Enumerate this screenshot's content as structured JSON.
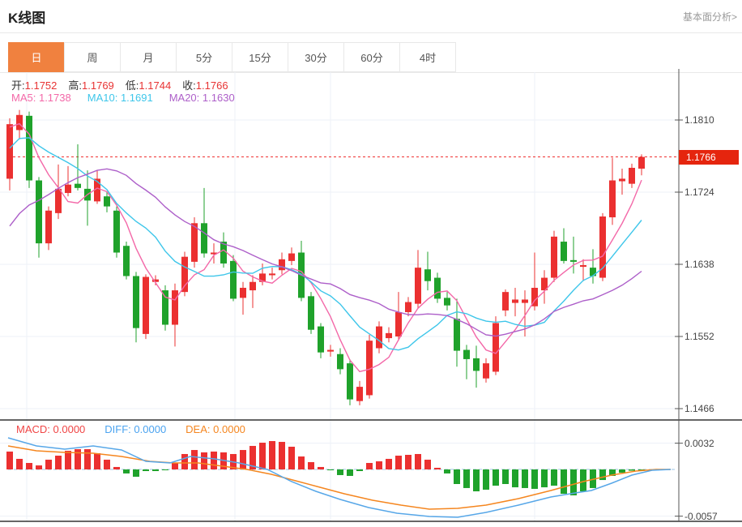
{
  "header": {
    "title": "K线图",
    "link": "基本面分析>"
  },
  "tabs": {
    "items": [
      "日",
      "周",
      "月",
      "5分",
      "15分",
      "30分",
      "60分",
      "4时"
    ],
    "active_index": 0
  },
  "legend": {
    "open_label": "开:",
    "open": "1.1752",
    "high_label": "高:",
    "high": "1.1769",
    "low_label": "低:",
    "low": "1.1744",
    "close_label": "收:",
    "close": "1.1766",
    "ma5_label": "MA5:",
    "ma5": "1.1738",
    "ma10_label": "MA10:",
    "ma10": "1.1691",
    "ma20_label": "MA20:",
    "ma20": "1.1630"
  },
  "macd_legend": {
    "macd_label": "MACD:",
    "macd": "0.0000",
    "diff_label": "DIFF:",
    "diff": "0.0000",
    "dea_label": "DEA:",
    "dea": "0.0000"
  },
  "colors": {
    "up": "#eb3030",
    "down": "#1fa22b",
    "ma5": "#f368a8",
    "ma10": "#3ec6ea",
    "ma20": "#ad5fc9",
    "diff": "#57a7e8",
    "dea": "#f5861f",
    "price_line": "#f03232",
    "price_label_bg": "#e5250e",
    "accent_tab": "#f0813f",
    "grid": "#edf1f7",
    "frame": "#333333",
    "axis_text": "#444444",
    "zero_dash": "#9cc4e4",
    "legend_macd": "#f04545",
    "legend_diff": "#4aa3f0",
    "legend_dea": "#f5861f"
  },
  "chart_data": {
    "type": "candlestick",
    "title": "K线图",
    "legend_position": "top-left",
    "grid": true,
    "price_axis": {
      "ticks": [
        1.181,
        1.1724,
        1.1638,
        1.1552,
        1.1466
      ],
      "current_price": 1.1766
    },
    "candles": [
      [
        1.174,
        1.1812,
        1.1726,
        1.1805
      ],
      [
        1.1798,
        1.1822,
        1.1787,
        1.1816
      ],
      [
        1.1815,
        1.182,
        1.1729,
        1.1738
      ],
      [
        1.1738,
        1.1742,
        1.1646,
        1.1663
      ],
      [
        1.1663,
        1.1707,
        1.1655,
        1.1702
      ],
      [
        1.1699,
        1.1757,
        1.1692,
        1.1728
      ],
      [
        1.1723,
        1.1755,
        1.1719,
        1.1733
      ],
      [
        1.1734,
        1.1781,
        1.1726,
        1.1729
      ],
      [
        1.1728,
        1.175,
        1.1684,
        1.1714
      ],
      [
        1.1713,
        1.175,
        1.171,
        1.174
      ],
      [
        1.1719,
        1.1725,
        1.17,
        1.1707
      ],
      [
        1.1702,
        1.1707,
        1.1646,
        1.1652
      ],
      [
        1.166,
        1.1665,
        1.162,
        1.1624
      ],
      [
        1.1624,
        1.1629,
        1.1545,
        1.1562
      ],
      [
        1.1555,
        1.1626,
        1.1549,
        1.1623
      ],
      [
        1.1617,
        1.1625,
        1.1613,
        1.162
      ],
      [
        1.1607,
        1.1613,
        1.1559,
        1.1566
      ],
      [
        1.1566,
        1.1615,
        1.154,
        1.1607
      ],
      [
        1.1605,
        1.1653,
        1.16,
        1.1647
      ],
      [
        1.1641,
        1.1694,
        1.1634,
        1.1687
      ],
      [
        1.1687,
        1.1729,
        1.1646,
        1.1651
      ],
      [
        1.165,
        1.1663,
        1.1639,
        1.1652
      ],
      [
        1.1665,
        1.1676,
        1.1634,
        1.1639
      ],
      [
        1.1642,
        1.1649,
        1.1594,
        1.1597
      ],
      [
        1.1598,
        1.1617,
        1.1578,
        1.161
      ],
      [
        1.1607,
        1.1625,
        1.1586,
        1.1617
      ],
      [
        1.1617,
        1.1639,
        1.1613,
        1.1627
      ],
      [
        1.1625,
        1.1634,
        1.162,
        1.1627
      ],
      [
        1.1631,
        1.1652,
        1.1626,
        1.1644
      ],
      [
        1.1642,
        1.1658,
        1.1637,
        1.1651
      ],
      [
        1.1652,
        1.1666,
        1.1594,
        1.1598
      ],
      [
        1.16,
        1.1605,
        1.1555,
        1.156
      ],
      [
        1.1564,
        1.1568,
        1.1526,
        1.1533
      ],
      [
        1.1534,
        1.1542,
        1.1528,
        1.1536
      ],
      [
        1.1531,
        1.1538,
        1.1507,
        1.1513
      ],
      [
        1.152,
        1.1525,
        1.147,
        1.1477
      ],
      [
        1.1475,
        1.1499,
        1.147,
        1.1492
      ],
      [
        1.1482,
        1.1554,
        1.1478,
        1.1547
      ],
      [
        1.1538,
        1.157,
        1.1532,
        1.1564
      ],
      [
        1.155,
        1.1563,
        1.1545,
        1.1556
      ],
      [
        1.1552,
        1.1605,
        1.1547,
        1.1581
      ],
      [
        1.1581,
        1.1599,
        1.1576,
        1.1593
      ],
      [
        1.1591,
        1.1655,
        1.1586,
        1.1634
      ],
      [
        1.1632,
        1.1653,
        1.1607,
        1.1618
      ],
      [
        1.1622,
        1.1628,
        1.1592,
        1.1597
      ],
      [
        1.1598,
        1.1605,
        1.1583,
        1.1589
      ],
      [
        1.1573,
        1.1597,
        1.1516,
        1.1535
      ],
      [
        1.1536,
        1.1542,
        1.1501,
        1.1525
      ],
      [
        1.1526,
        1.1541,
        1.1491,
        1.1511
      ],
      [
        1.1502,
        1.1526,
        1.1497,
        1.152
      ],
      [
        1.151,
        1.1576,
        1.1506,
        1.1568
      ],
      [
        1.1583,
        1.1608,
        1.1576,
        1.1605
      ],
      [
        1.1592,
        1.161,
        1.1576,
        1.1596
      ],
      [
        1.1592,
        1.1607,
        1.1552,
        1.1596
      ],
      [
        1.1588,
        1.1652,
        1.1583,
        1.161
      ],
      [
        1.1607,
        1.1631,
        1.1591,
        1.1622
      ],
      [
        1.1622,
        1.1678,
        1.1617,
        1.1671
      ],
      [
        1.1665,
        1.1681,
        1.1639,
        1.1642
      ],
      [
        1.1643,
        1.1671,
        1.1627,
        1.1641
      ],
      [
        1.1635,
        1.1644,
        1.1618,
        1.1637
      ],
      [
        1.1634,
        1.1656,
        1.1615,
        1.1624
      ],
      [
        1.1622,
        1.1699,
        1.1618,
        1.1695
      ],
      [
        1.1694,
        1.1765,
        1.1685,
        1.1738
      ],
      [
        1.1737,
        1.1752,
        1.1721,
        1.174
      ],
      [
        1.1734,
        1.1758,
        1.1729,
        1.1753
      ],
      [
        1.1752,
        1.1769,
        1.1744,
        1.1766
      ]
    ],
    "lead_in_closes": [
      1.152,
      1.1535,
      1.155,
      1.1565,
      1.158,
      1.1595,
      1.1612,
      1.163,
      1.165,
      1.1672,
      1.17,
      1.173,
      1.1758,
      1.1778,
      1.179,
      1.1796,
      1.18,
      1.1803,
      1.1804
    ],
    "ma_periods": [
      5,
      10,
      20
    ],
    "indicator": {
      "type": "MACD",
      "axis_ticks": [
        0.0032,
        -0.0057
      ],
      "hist": [
        0.00218,
        0.00129,
        0.00079,
        0.00049,
        0.00119,
        0.00168,
        0.00227,
        0.00247,
        0.00247,
        0.00198,
        0.00119,
        0.0003,
        -0.00049,
        -0.00089,
        -0.0002,
        -0.0002,
        -0.0001,
        0.00079,
        0.00188,
        0.00237,
        0.00208,
        0.00218,
        0.00208,
        0.00188,
        0.00237,
        0.00287,
        0.00326,
        0.00346,
        0.00336,
        0.00277,
        0.00158,
        0.00089,
        0.0003,
        -0.0001,
        -0.00069,
        -0.00079,
        -0.0002,
        0.00079,
        0.00099,
        0.00129,
        0.00168,
        0.00178,
        0.00188,
        0.00119,
        0.0002,
        -0.00049,
        -0.00178,
        -0.00227,
        -0.00267,
        -0.00247,
        -0.00198,
        -0.00178,
        -0.00218,
        -0.00227,
        -0.00237,
        -0.00218,
        -0.00198,
        -0.00297,
        -0.00316,
        -0.00267,
        -0.00227,
        -0.00129,
        -0.00079,
        -0.0004,
        -0.00015,
        -5e-05
      ],
      "diff_line": [
        [
          10,
          0.00386
        ],
        [
          45,
          0.00287
        ],
        [
          80,
          0.00247
        ],
        [
          115,
          0.00287
        ],
        [
          150,
          0.00237
        ],
        [
          180,
          0.00099
        ],
        [
          210,
          0.00079
        ],
        [
          235,
          0.00158
        ],
        [
          265,
          0.00129
        ],
        [
          295,
          0.00079
        ],
        [
          330,
          0.0
        ],
        [
          360,
          -0.00148
        ],
        [
          390,
          -0.00267
        ],
        [
          420,
          -0.00366
        ],
        [
          455,
          -0.00465
        ],
        [
          490,
          -0.00534
        ],
        [
          530,
          -0.00574
        ],
        [
          565,
          -0.00583
        ],
        [
          600,
          -0.00524
        ],
        [
          640,
          -0.00435
        ],
        [
          680,
          -0.00336
        ],
        [
          710,
          -0.00287
        ],
        [
          730,
          -0.00257
        ],
        [
          755,
          -0.00168
        ],
        [
          780,
          -0.00069
        ],
        [
          805,
          -0.0001
        ],
        [
          828,
          0.0
        ]
      ],
      "dea_line": [
        [
          10,
          0.00287
        ],
        [
          45,
          0.00227
        ],
        [
          80,
          0.00208
        ],
        [
          115,
          0.00198
        ],
        [
          150,
          0.00158
        ],
        [
          185,
          0.00099
        ],
        [
          215,
          0.00079
        ],
        [
          245,
          0.00079
        ],
        [
          275,
          0.0004
        ],
        [
          305,
          0.0
        ],
        [
          335,
          -0.00059
        ],
        [
          365,
          -0.00138
        ],
        [
          395,
          -0.00218
        ],
        [
          425,
          -0.00297
        ],
        [
          460,
          -0.00376
        ],
        [
          495,
          -0.00435
        ],
        [
          530,
          -0.00485
        ],
        [
          565,
          -0.00475
        ],
        [
          600,
          -0.00435
        ],
        [
          640,
          -0.00356
        ],
        [
          680,
          -0.00257
        ],
        [
          720,
          -0.00148
        ],
        [
          755,
          -0.00069
        ],
        [
          785,
          -0.0002
        ],
        [
          810,
          0.0
        ],
        [
          828,
          0.0
        ]
      ]
    }
  }
}
